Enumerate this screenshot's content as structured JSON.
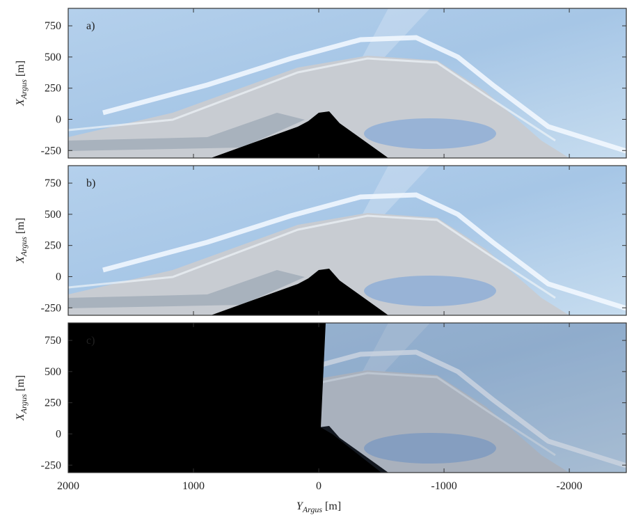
{
  "chart_data": [
    {
      "type": "image",
      "panel_label": "a)",
      "xlim": [
        2000,
        -2455
      ],
      "ylim": [
        -310,
        890
      ],
      "xticks": [
        2000,
        1000,
        0,
        -1000,
        -2000
      ],
      "yticks": [
        750,
        500,
        250,
        0,
        -250
      ],
      "ylabel": {
        "symbol": "X",
        "subscript": "Argus",
        "unit": "[m]"
      }
    },
    {
      "type": "image",
      "panel_label": "b)",
      "xlim": [
        2000,
        -2455
      ],
      "ylim": [
        -310,
        890
      ],
      "xticks": [
        2000,
        1000,
        0,
        -1000,
        -2000
      ],
      "yticks": [
        750,
        500,
        250,
        0,
        -250
      ],
      "ylabel": {
        "symbol": "X",
        "subscript": "Argus",
        "unit": "[m]"
      }
    },
    {
      "type": "image",
      "panel_label": "c)",
      "xlim": [
        2000,
        -2455
      ],
      "ylim": [
        -310,
        890
      ],
      "xticks": [
        2000,
        1000,
        0,
        -1000,
        -2000
      ],
      "yticks": [
        750,
        500,
        250,
        0,
        -250
      ],
      "ylabel": {
        "symbol": "X",
        "subscript": "Argus",
        "unit": "[m]"
      },
      "xlabel": {
        "symbol": "Y",
        "subscript": "Argus",
        "unit": "[m]"
      }
    }
  ]
}
